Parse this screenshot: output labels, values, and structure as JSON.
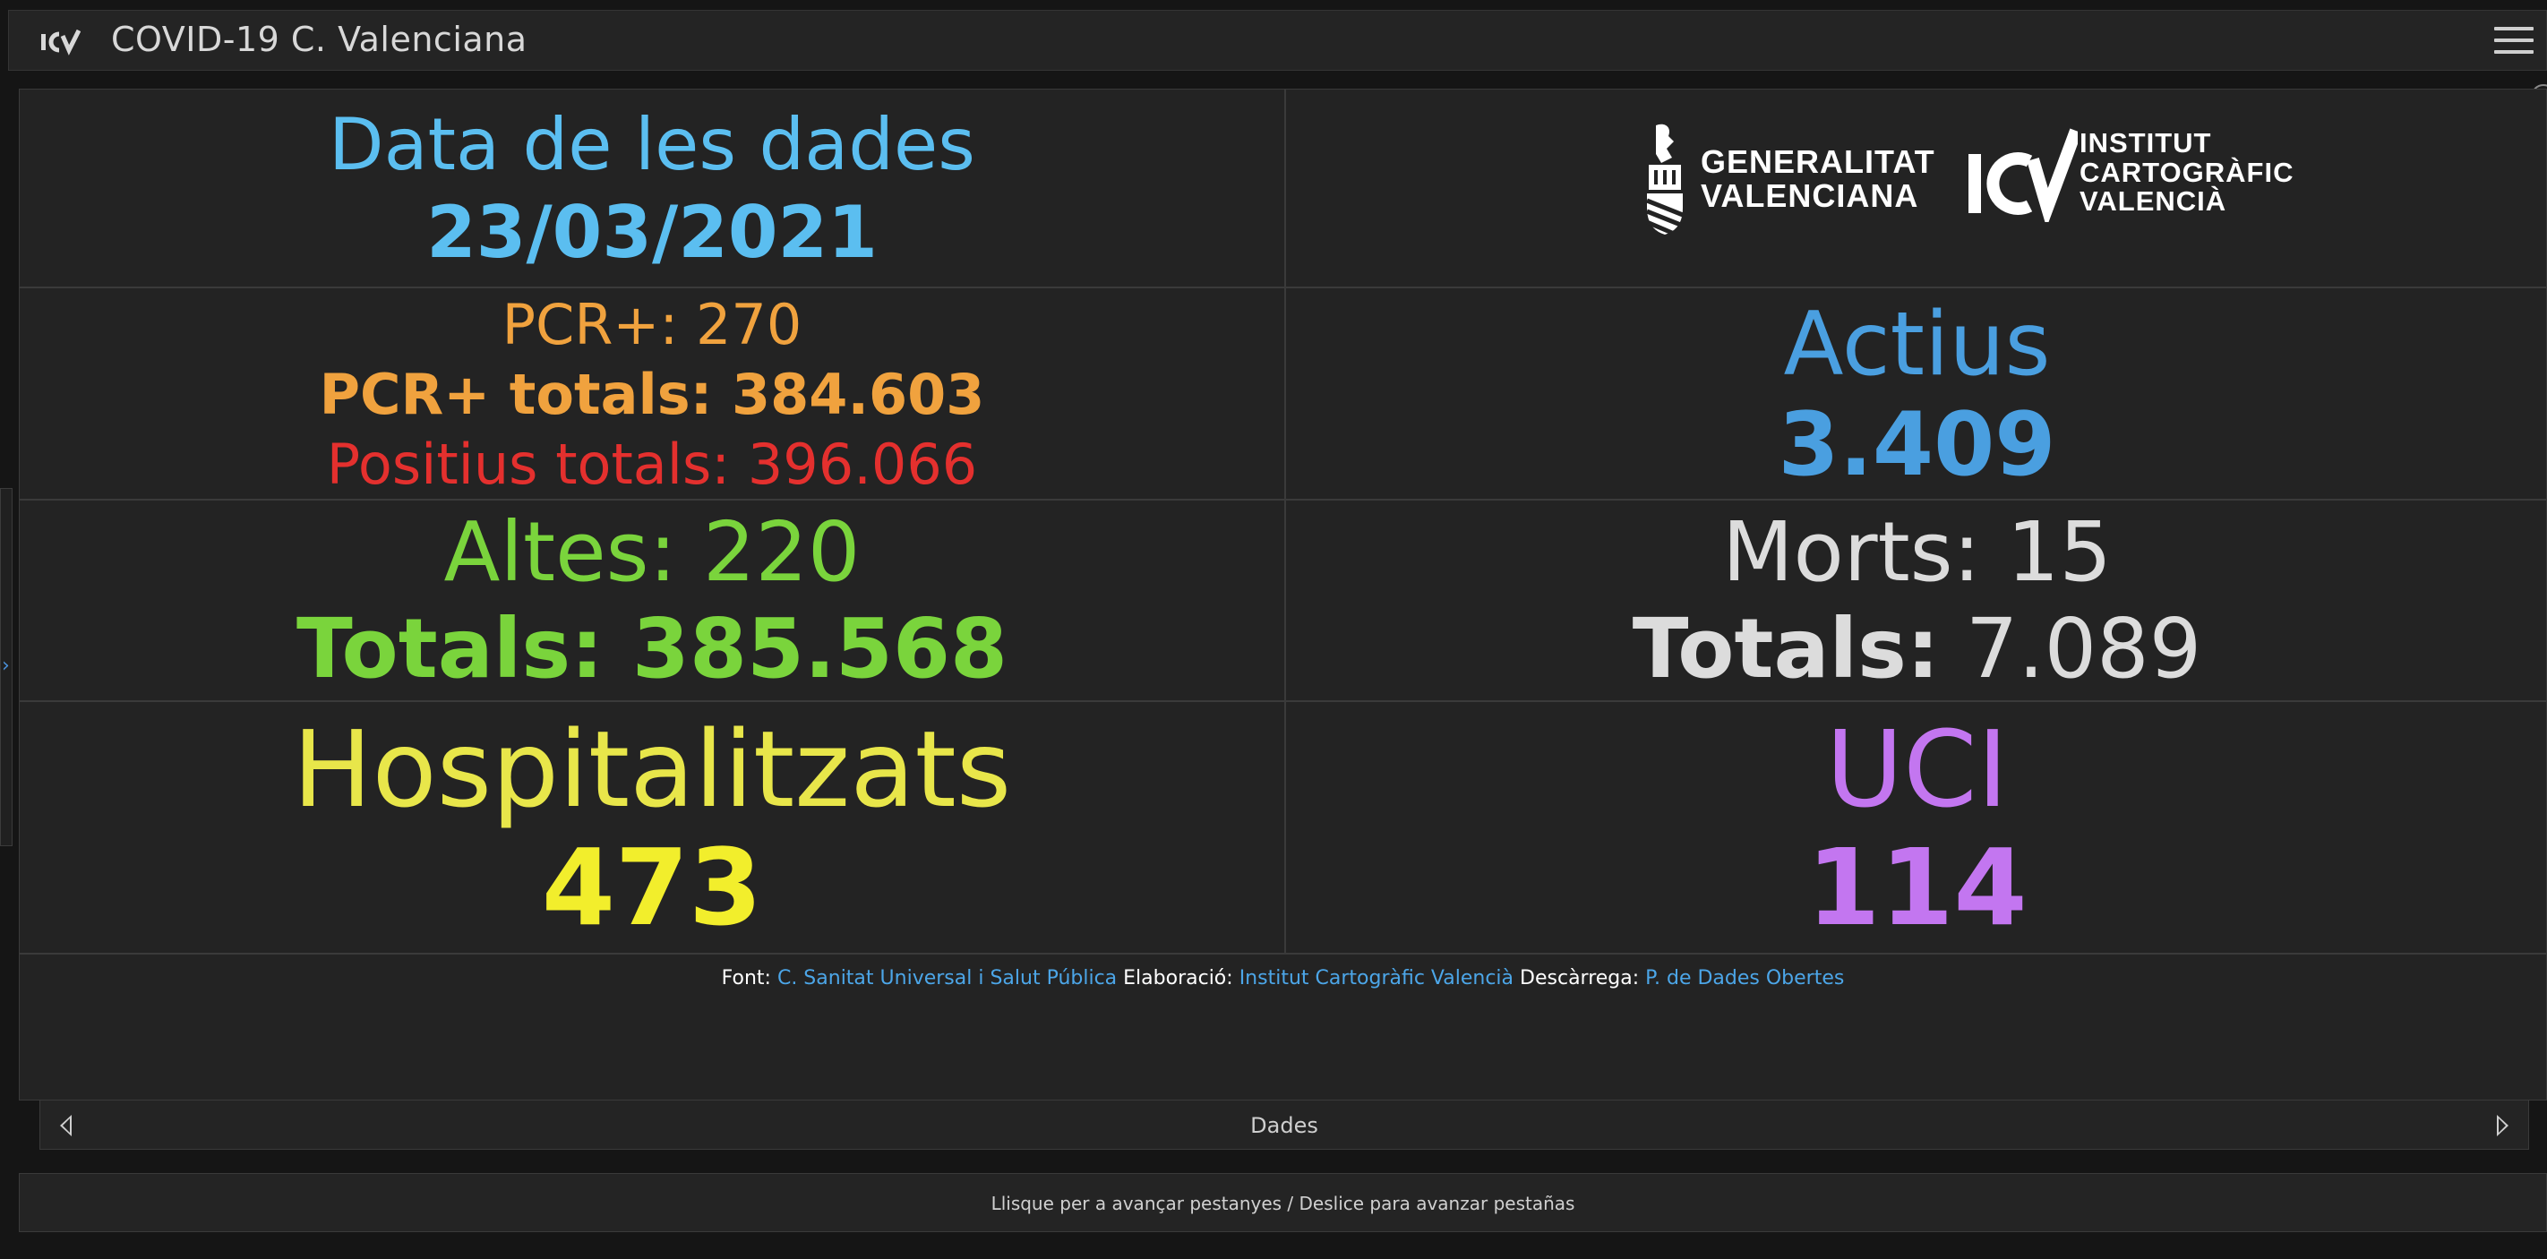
{
  "header": {
    "title": "COVID-19 C. Valenciana",
    "logo_text": "ICV"
  },
  "dashboard": {
    "date": {
      "label": "Data de les dades",
      "value": "23/03/2021"
    },
    "logos": {
      "gv_line1": "GENERALITAT",
      "gv_line2": "VALENCIANA",
      "icv_mark": "ICV",
      "icv_line1": "INSTITUT",
      "icv_line2": "CARTOGRÀFIC",
      "icv_line3": "VALENCIÀ"
    },
    "pcr": {
      "daily": "PCR+: 270",
      "total": "PCR+ totals: 384.603",
      "positive_total": "Positius totals: 396.066"
    },
    "actius": {
      "label": "Actius",
      "value": "3.409"
    },
    "altes": {
      "daily": "Altes: 220",
      "total": "Totals: 385.568"
    },
    "morts": {
      "daily": "Morts: 15",
      "total_label": "Totals:",
      "total_value": "7.089"
    },
    "hospitalitzats": {
      "label": "Hospitalitzats",
      "value": "473"
    },
    "uci": {
      "label": "UCI",
      "value": "114"
    },
    "credits": {
      "font_label": "Font:",
      "font_link": "C. Sanitat Universal i Salut Pública",
      "elab_label": "Elaboració:",
      "elab_link": "Institut Cartogràfic Valencià",
      "desc_label": "Descàrrega:",
      "desc_link": "P. de Dades Obertes"
    }
  },
  "tabs": {
    "current": "Dades"
  },
  "hint": {
    "text": "Llisque per a avançar pestanyes / Deslice para avanzar pestañas"
  },
  "colors": {
    "date": "#5bbef0",
    "pcr": "#f0a23e",
    "positius": "#e4302e",
    "actius": "#4a9fe0",
    "altes": "#7ad43c",
    "morts": "#dcdcdc",
    "hospitalitzats": "#e8e64a",
    "uci": "#c376f0",
    "link": "#4ca6e8"
  }
}
